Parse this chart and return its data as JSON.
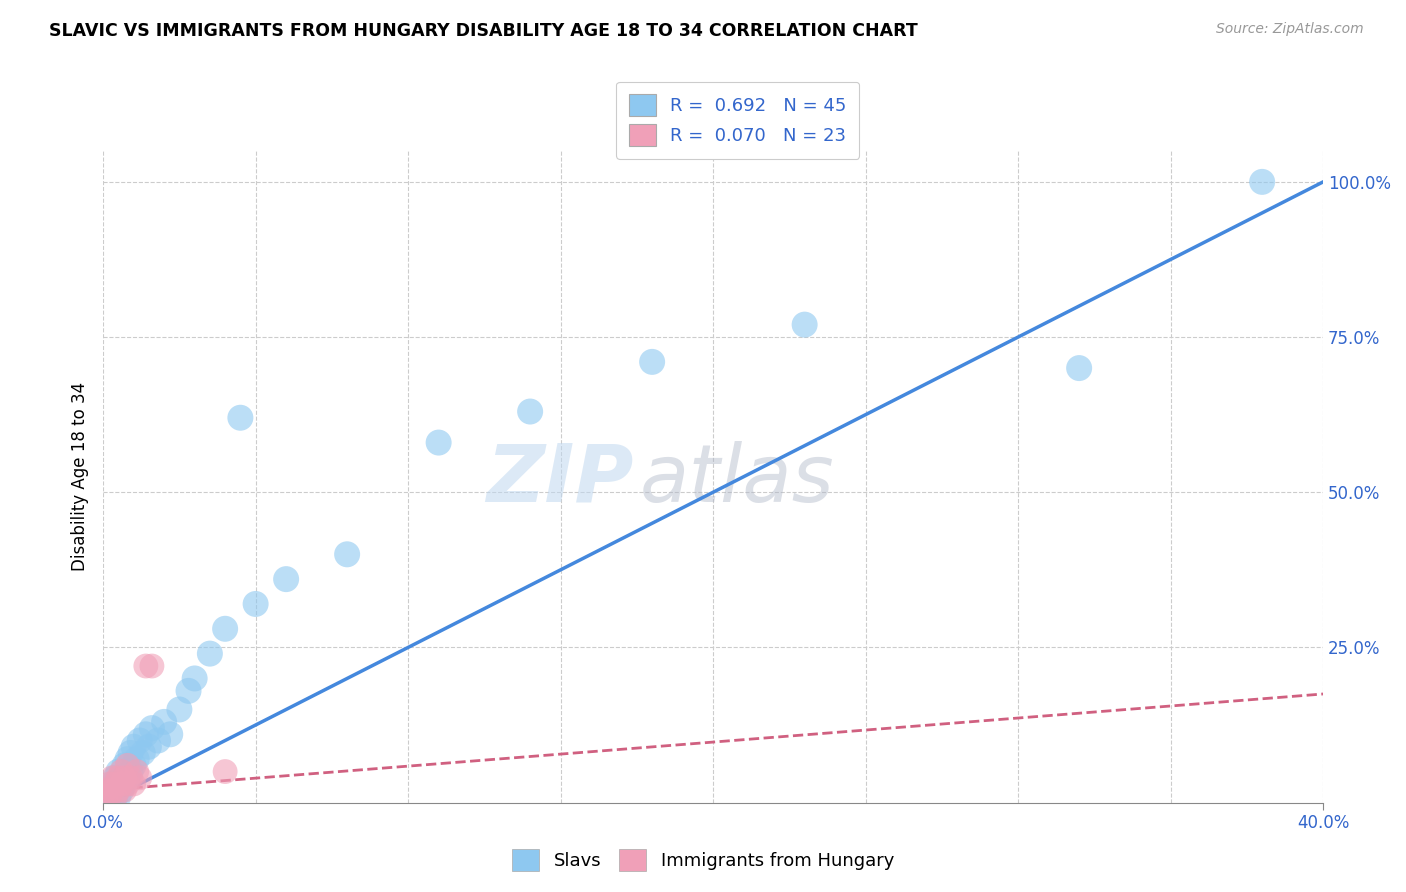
{
  "title": "SLAVIC VS IMMIGRANTS FROM HUNGARY DISABILITY AGE 18 TO 34 CORRELATION CHART",
  "source": "Source: ZipAtlas.com",
  "ylabel": "Disability Age 18 to 34",
  "x_min": 0.0,
  "x_max": 0.4,
  "y_min": 0.0,
  "y_max": 1.05,
  "color_blue": "#8ec8f0",
  "color_blue_line": "#4488dd",
  "color_pink": "#f0a0b8",
  "color_pink_line": "#d06080",
  "watermark_zip": "ZIP",
  "watermark_atlas": "atlas",
  "legend_label1": "R =  0.692   N = 45",
  "legend_label2": "R =  0.070   N = 23",
  "legend_series1": "Slavs",
  "legend_series2": "Immigrants from Hungary",
  "slavs_x": [
    0.001,
    0.002,
    0.002,
    0.003,
    0.003,
    0.004,
    0.004,
    0.004,
    0.005,
    0.005,
    0.005,
    0.006,
    0.006,
    0.007,
    0.007,
    0.008,
    0.008,
    0.009,
    0.009,
    0.01,
    0.01,
    0.011,
    0.012,
    0.013,
    0.014,
    0.015,
    0.016,
    0.018,
    0.02,
    0.022,
    0.025,
    0.028,
    0.03,
    0.035,
    0.04,
    0.05,
    0.06,
    0.08,
    0.11,
    0.14,
    0.18,
    0.23,
    0.045,
    0.32,
    0.38
  ],
  "slavs_y": [
    0.01,
    0.02,
    0.01,
    0.03,
    0.02,
    0.01,
    0.04,
    0.02,
    0.03,
    0.01,
    0.05,
    0.02,
    0.04,
    0.03,
    0.06,
    0.04,
    0.07,
    0.05,
    0.08,
    0.06,
    0.09,
    0.07,
    0.1,
    0.08,
    0.11,
    0.09,
    0.12,
    0.1,
    0.13,
    0.11,
    0.15,
    0.18,
    0.2,
    0.24,
    0.28,
    0.32,
    0.36,
    0.4,
    0.58,
    0.63,
    0.71,
    0.77,
    0.62,
    0.7,
    1.0
  ],
  "hungary_x": [
    0.001,
    0.001,
    0.002,
    0.002,
    0.003,
    0.003,
    0.004,
    0.004,
    0.005,
    0.005,
    0.006,
    0.006,
    0.007,
    0.007,
    0.008,
    0.008,
    0.009,
    0.01,
    0.011,
    0.012,
    0.014,
    0.016,
    0.04
  ],
  "hungary_y": [
    0.01,
    0.02,
    0.01,
    0.03,
    0.02,
    0.04,
    0.01,
    0.03,
    0.02,
    0.04,
    0.03,
    0.05,
    0.02,
    0.04,
    0.03,
    0.06,
    0.04,
    0.03,
    0.05,
    0.04,
    0.22,
    0.22,
    0.05
  ]
}
